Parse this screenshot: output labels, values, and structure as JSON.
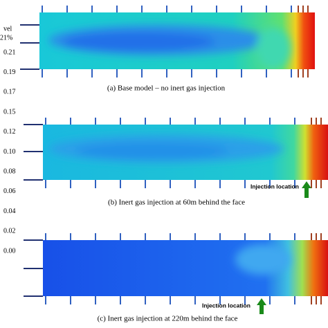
{
  "legend": {
    "title": "vel",
    "subtitle": "21%"
  },
  "scale_labels": [
    "0.21",
    "0.19",
    "0.17",
    "0.15",
    "0.12",
    "0.10",
    "0.08",
    "0.06",
    "0.04",
    "0.02",
    "0.00"
  ],
  "panels": [
    {
      "caption": "(a) Base model – no inert gas injection"
    },
    {
      "caption": "(b) Inert gas injection at 60m behind the face",
      "marker": "Injection location"
    },
    {
      "caption": "(c) Inert gas injection at 220m behind the face",
      "marker": "Injection location"
    }
  ]
}
